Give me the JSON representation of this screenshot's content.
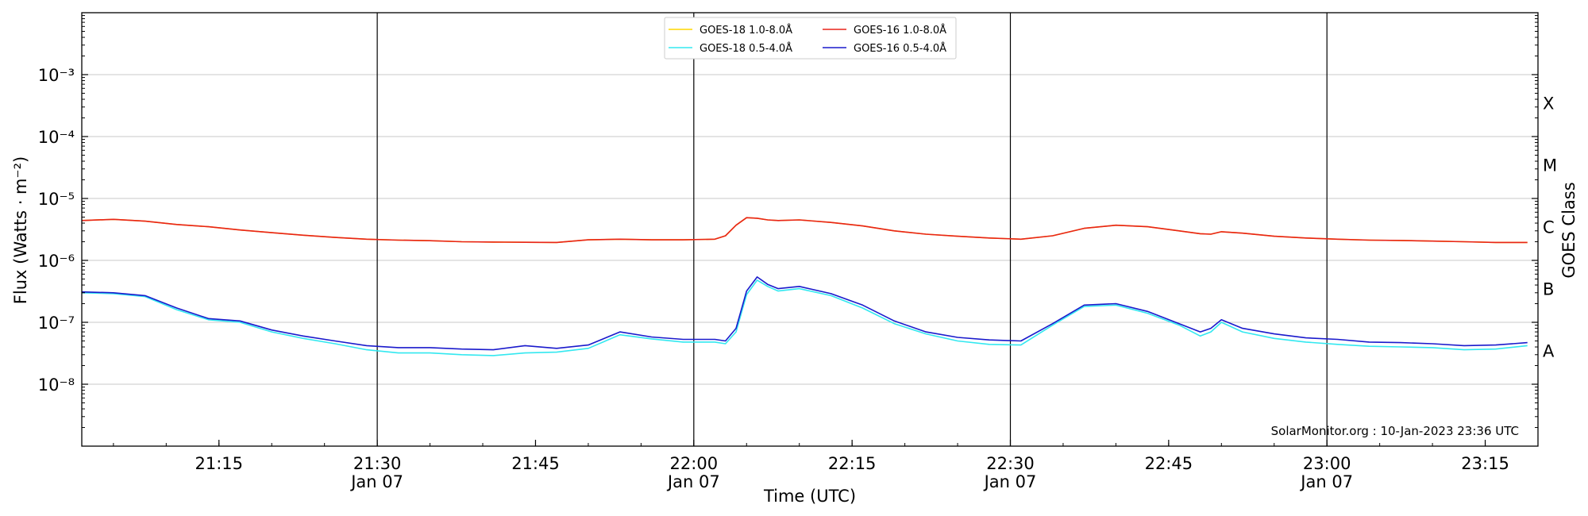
{
  "chart_data": {
    "type": "line",
    "xlabel": "Time (UTC)",
    "ylabel": "Flux (Watts · m⁻²)",
    "right_label": "GOES Class",
    "credit": "SolarMonitor.org : 10-Jan-2023 23:36 UTC",
    "y_scale": "log",
    "ylim": [
      1e-09,
      0.01
    ],
    "xlim": [
      "21:02",
      "23:20"
    ],
    "grid": "horizontal",
    "legend_position": "top-center",
    "y_ticks": [
      {
        "value": 1e-08,
        "label": "10⁻⁸"
      },
      {
        "value": 1e-07,
        "label": "10⁻⁷"
      },
      {
        "value": 1e-06,
        "label": "10⁻⁶"
      },
      {
        "value": 1e-05,
        "label": "10⁻⁵"
      },
      {
        "value": 0.0001,
        "label": "10⁻⁴"
      },
      {
        "value": 0.001,
        "label": "10⁻³"
      }
    ],
    "x_ticks": [
      {
        "t": "21:15",
        "label": "21:15",
        "sub": ""
      },
      {
        "t": "21:30",
        "label": "21:30",
        "sub": "Jan 07"
      },
      {
        "t": "21:45",
        "label": "21:45",
        "sub": ""
      },
      {
        "t": "22:00",
        "label": "22:00",
        "sub": "Jan 07"
      },
      {
        "t": "22:15",
        "label": "22:15",
        "sub": ""
      },
      {
        "t": "22:30",
        "label": "22:30",
        "sub": "Jan 07"
      },
      {
        "t": "22:45",
        "label": "22:45",
        "sub": ""
      },
      {
        "t": "23:00",
        "label": "23:00",
        "sub": "Jan 07"
      },
      {
        "t": "23:15",
        "label": "23:15",
        "sub": ""
      }
    ],
    "vlines": [
      "21:30",
      "22:00",
      "22:30",
      "23:00"
    ],
    "goes_classes": [
      {
        "label": "A",
        "value": 1e-08
      },
      {
        "label": "B",
        "value": 1e-07
      },
      {
        "label": "C",
        "value": 1e-06
      },
      {
        "label": "M",
        "value": 1e-05
      },
      {
        "label": "X",
        "value": 0.0001
      }
    ],
    "x": [
      "21:02",
      "21:05",
      "21:08",
      "21:11",
      "21:14",
      "21:17",
      "21:20",
      "21:23",
      "21:26",
      "21:29",
      "21:32",
      "21:35",
      "21:38",
      "21:41",
      "21:44",
      "21:47",
      "21:50",
      "21:53",
      "21:56",
      "21:59",
      "22:02",
      "22:03",
      "22:04",
      "22:05",
      "22:06",
      "22:07",
      "22:08",
      "22:10",
      "22:13",
      "22:16",
      "22:19",
      "22:22",
      "22:25",
      "22:28",
      "22:31",
      "22:34",
      "22:37",
      "22:40",
      "22:43",
      "22:46",
      "22:48",
      "22:49",
      "22:50",
      "22:52",
      "22:55",
      "22:58",
      "23:01",
      "23:04",
      "23:07",
      "23:10",
      "23:13",
      "23:16",
      "23:19"
    ],
    "series": [
      {
        "name": "GOES-18 1.0-8.0Å",
        "color": "#ffd700",
        "values": [
          4.4e-06,
          4.6e-06,
          4.3e-06,
          3.8e-06,
          3.5e-06,
          3.1e-06,
          2.8e-06,
          2.55e-06,
          2.35e-06,
          2.2e-06,
          2.12e-06,
          2.08e-06,
          2e-06,
          1.98e-06,
          1.96e-06,
          1.95e-06,
          2.15e-06,
          2.2e-06,
          2.15e-06,
          2.15e-06,
          2.2e-06,
          2.5e-06,
          3.7e-06,
          4.9e-06,
          4.8e-06,
          4.5e-06,
          4.4e-06,
          4.5e-06,
          4.1e-06,
          3.6e-06,
          3e-06,
          2.65e-06,
          2.45e-06,
          2.3e-06,
          2.2e-06,
          2.5e-06,
          3.3e-06,
          3.7e-06,
          3.5e-06,
          3e-06,
          2.7e-06,
          2.65e-06,
          2.9e-06,
          2.75e-06,
          2.45e-06,
          2.3e-06,
          2.2e-06,
          2.12e-06,
          2.1e-06,
          2.05e-06,
          2e-06,
          1.95e-06,
          1.95e-06
        ]
      },
      {
        "name": "GOES-18 0.5-4.0Å",
        "color": "#33e8f0",
        "values": [
          3e-07,
          2.9e-07,
          2.6e-07,
          1.6e-07,
          1.1e-07,
          1e-07,
          7e-08,
          5.5e-08,
          4.5e-08,
          3.6e-08,
          3.2e-08,
          3.2e-08,
          3e-08,
          2.9e-08,
          3.2e-08,
          3.3e-08,
          3.8e-08,
          6.3e-08,
          5.4e-08,
          4.8e-08,
          4.8e-08,
          4.5e-08,
          7e-08,
          2.8e-07,
          4.8e-07,
          3.8e-07,
          3.2e-07,
          3.5e-07,
          2.7e-07,
          1.7e-07,
          9.5e-08,
          6.5e-08,
          5e-08,
          4.4e-08,
          4.3e-08,
          9e-08,
          1.8e-07,
          1.9e-07,
          1.4e-07,
          9e-08,
          6e-08,
          7e-08,
          1e-07,
          7e-08,
          5.5e-08,
          4.8e-08,
          4.4e-08,
          4.1e-08,
          4e-08,
          3.9e-08,
          3.6e-08,
          3.7e-08,
          4.2e-08
        ]
      },
      {
        "name": "GOES-16 1.0-8.0Å",
        "color": "#e8231a",
        "values": [
          4.4e-06,
          4.6e-06,
          4.3e-06,
          3.8e-06,
          3.5e-06,
          3.1e-06,
          2.8e-06,
          2.55e-06,
          2.35e-06,
          2.2e-06,
          2.12e-06,
          2.08e-06,
          2e-06,
          1.98e-06,
          1.96e-06,
          1.95e-06,
          2.15e-06,
          2.2e-06,
          2.15e-06,
          2.15e-06,
          2.2e-06,
          2.5e-06,
          3.7e-06,
          4.9e-06,
          4.8e-06,
          4.5e-06,
          4.4e-06,
          4.5e-06,
          4.1e-06,
          3.6e-06,
          3e-06,
          2.65e-06,
          2.45e-06,
          2.3e-06,
          2.2e-06,
          2.5e-06,
          3.3e-06,
          3.7e-06,
          3.5e-06,
          3e-06,
          2.7e-06,
          2.65e-06,
          2.9e-06,
          2.75e-06,
          2.45e-06,
          2.3e-06,
          2.2e-06,
          2.12e-06,
          2.1e-06,
          2.05e-06,
          2e-06,
          1.95e-06,
          1.95e-06
        ]
      },
      {
        "name": "GOES-16 0.5-4.0Å",
        "color": "#1a1acc",
        "values": [
          3.1e-07,
          3e-07,
          2.7e-07,
          1.7e-07,
          1.15e-07,
          1.05e-07,
          7.5e-08,
          6e-08,
          5e-08,
          4.2e-08,
          3.9e-08,
          3.9e-08,
          3.7e-08,
          3.6e-08,
          4.2e-08,
          3.8e-08,
          4.3e-08,
          7e-08,
          5.8e-08,
          5.3e-08,
          5.3e-08,
          5e-08,
          8e-08,
          3.2e-07,
          5.4e-07,
          4.1e-07,
          3.5e-07,
          3.8e-07,
          2.9e-07,
          1.9e-07,
          1.05e-07,
          7e-08,
          5.7e-08,
          5.2e-08,
          5e-08,
          9.5e-08,
          1.9e-07,
          2e-07,
          1.5e-07,
          9.5e-08,
          7e-08,
          8e-08,
          1.1e-07,
          8e-08,
          6.5e-08,
          5.6e-08,
          5.3e-08,
          4.8e-08,
          4.7e-08,
          4.5e-08,
          4.2e-08,
          4.3e-08,
          4.7e-08
        ]
      }
    ]
  }
}
